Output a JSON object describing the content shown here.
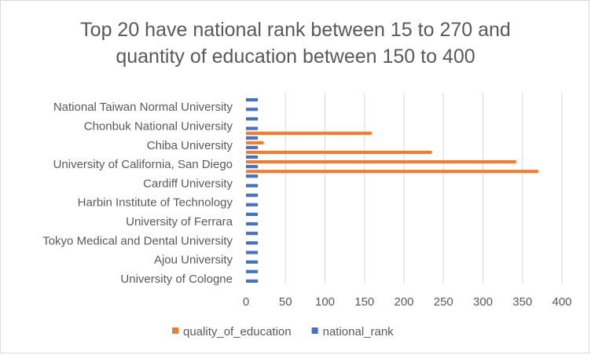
{
  "chart_data": {
    "type": "bar",
    "orientation": "horizontal",
    "title_lines": [
      "Top 20 have national rank between 15 to 270 and",
      "quantity of education between 150 to 400"
    ],
    "categories": [
      "University of Cologne",
      "",
      "Ajou University",
      "",
      "Tokyo Medical and Dental University",
      "",
      "University of Ferrara",
      "",
      "Harbin Institute of Technology",
      "",
      "Cardiff University",
      "",
      "University of California, San Diego",
      "",
      "Chiba University",
      "",
      "Chonbuk National University",
      "",
      "National Taiwan Normal University",
      ""
    ],
    "series": [
      {
        "name": "quality_of_education",
        "color": "#ED7D31",
        "values": [
          0,
          0,
          0,
          0,
          0,
          0,
          0,
          0,
          0,
          0,
          0,
          370,
          342,
          235,
          22,
          159,
          0,
          0,
          0,
          0
        ]
      },
      {
        "name": "national_rank",
        "color": "#4472C4",
        "values": [
          15,
          15,
          15,
          15,
          15,
          15,
          15,
          15,
          15,
          15,
          15,
          15,
          15,
          15,
          15,
          15,
          15,
          15,
          15,
          15
        ]
      }
    ],
    "xlim": [
      0,
      400
    ],
    "xticks": [
      0,
      50,
      100,
      150,
      200,
      250,
      300,
      350,
      400
    ],
    "legend_position": "bottom",
    "grid": "vertical"
  }
}
